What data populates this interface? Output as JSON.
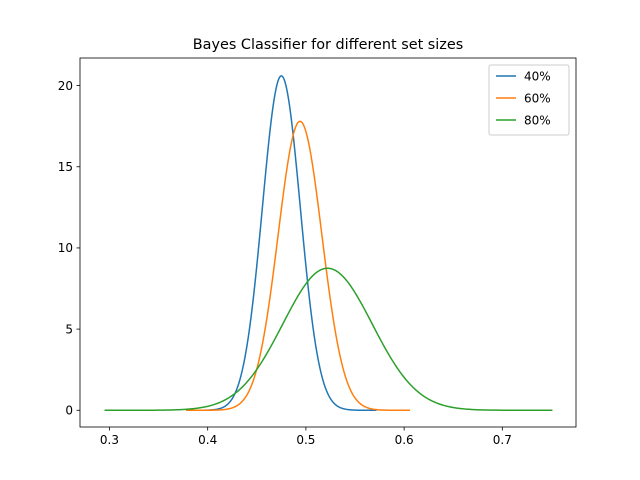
{
  "chart_data": {
    "type": "line",
    "title": "Bayes Classifier for different set sizes",
    "xlabel": "",
    "ylabel": "",
    "xlim": [
      0.27,
      0.775
    ],
    "ylim": [
      -1.03,
      21.7
    ],
    "xticks": [
      0.3,
      0.4,
      0.5,
      0.6,
      0.7
    ],
    "xtick_labels": [
      "0.3",
      "0.4",
      "0.5",
      "0.6",
      "0.7"
    ],
    "yticks": [
      0,
      5,
      10,
      15,
      20
    ],
    "ytick_labels": [
      "0",
      "5",
      "10",
      "15",
      "20"
    ],
    "grid": false,
    "legend_position": "top-right",
    "series": [
      {
        "name": "40%",
        "color": "#1f77b4",
        "distribution": "normal",
        "mean": 0.475,
        "std": 0.0193,
        "peak": 20.6,
        "x_range": [
          0.378,
          0.572
        ]
      },
      {
        "name": "60%",
        "color": "#ff7f0e",
        "distribution": "normal",
        "mean": 0.494,
        "std": 0.0223,
        "peak": 17.8,
        "x_range": [
          0.378,
          0.606
        ]
      },
      {
        "name": "80%",
        "color": "#2ca02c",
        "distribution": "normal",
        "mean": 0.522,
        "std": 0.0456,
        "peak": 8.75,
        "x_range": [
          0.295,
          0.751
        ]
      }
    ]
  }
}
